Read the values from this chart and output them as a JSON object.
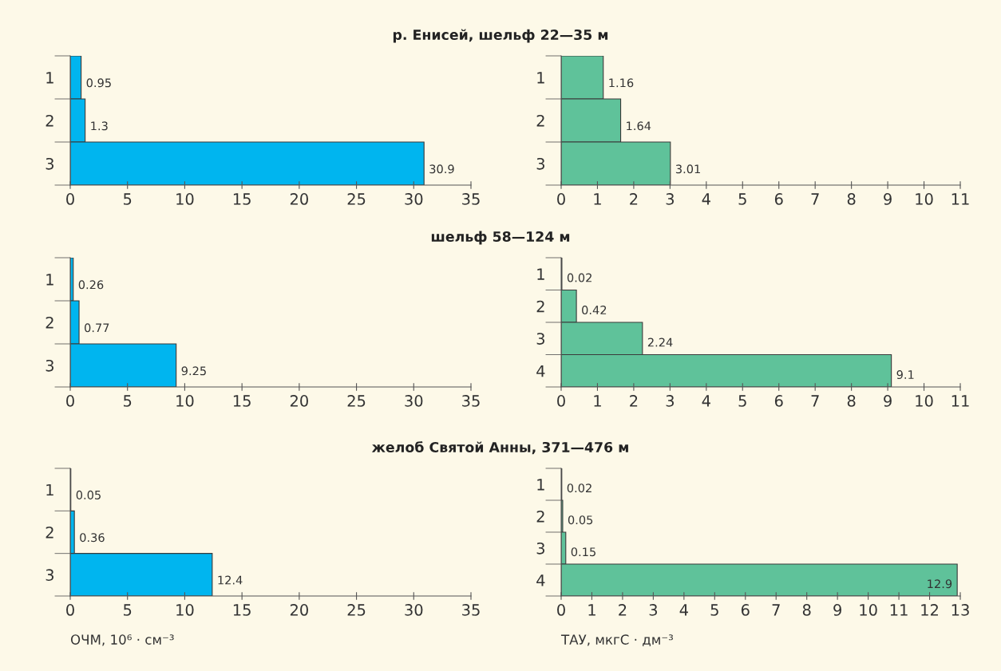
{
  "chart_data": [
    {
      "type": "bar",
      "orientation": "horizontal",
      "title": "р. Енисей, шельф 22—35 м",
      "categories": [
        "1",
        "2",
        "3"
      ],
      "values": [
        0.95,
        1.3,
        30.9
      ],
      "color": "#00b5ef",
      "xlim": [
        0,
        35
      ],
      "xticks": [
        0,
        5,
        10,
        15,
        20,
        25,
        30,
        35
      ],
      "data_labels": true,
      "grid": false,
      "legend": false
    },
    {
      "type": "bar",
      "orientation": "horizontal",
      "categories": [
        "1",
        "2",
        "3"
      ],
      "values": [
        1.16,
        1.64,
        3.01
      ],
      "color": "#5fc29a",
      "xlim": [
        0,
        11
      ],
      "xticks": [
        0,
        1,
        2,
        3,
        4,
        5,
        6,
        7,
        8,
        9,
        10,
        11
      ],
      "data_labels": true,
      "grid": false,
      "legend": false
    },
    {
      "type": "bar",
      "orientation": "horizontal",
      "title": "шельф 58—124 м",
      "categories": [
        "1",
        "2",
        "3"
      ],
      "values": [
        0.26,
        0.77,
        9.25
      ],
      "color": "#00b5ef",
      "xlim": [
        0,
        35
      ],
      "xticks": [
        0,
        5,
        10,
        15,
        20,
        25,
        30,
        35
      ],
      "data_labels": true,
      "grid": false,
      "legend": false
    },
    {
      "type": "bar",
      "orientation": "horizontal",
      "categories": [
        "1",
        "2",
        "3",
        "4"
      ],
      "values": [
        0.02,
        0.42,
        2.24,
        9.1
      ],
      "color": "#5fc29a",
      "xlim": [
        0,
        11
      ],
      "xticks": [
        0,
        1,
        2,
        3,
        4,
        5,
        6,
        7,
        8,
        9,
        10,
        11
      ],
      "data_labels": true,
      "grid": false,
      "legend": false
    },
    {
      "type": "bar",
      "orientation": "horizontal",
      "title": "желоб Святой Анны, 371—476 м",
      "xlabel": "ОЧМ, 10⁶ · см⁻³",
      "categories": [
        "1",
        "2",
        "3"
      ],
      "values": [
        0.05,
        0.36,
        12.4
      ],
      "color": "#00b5ef",
      "xlim": [
        0,
        35
      ],
      "xticks": [
        0,
        5,
        10,
        15,
        20,
        25,
        30,
        35
      ],
      "data_labels": true,
      "grid": false,
      "legend": false
    },
    {
      "type": "bar",
      "orientation": "horizontal",
      "xlabel": "ТАУ, мкгС · дм⁻³",
      "categories": [
        "1",
        "2",
        "3",
        "4"
      ],
      "values": [
        0.02,
        0.05,
        0.15,
        12.9
      ],
      "color": "#5fc29a",
      "xlim": [
        0,
        13
      ],
      "xticks": [
        0,
        1,
        2,
        3,
        4,
        5,
        6,
        7,
        8,
        9,
        10,
        11,
        12,
        13
      ],
      "data_labels": true,
      "grid": false,
      "legend": false
    }
  ]
}
